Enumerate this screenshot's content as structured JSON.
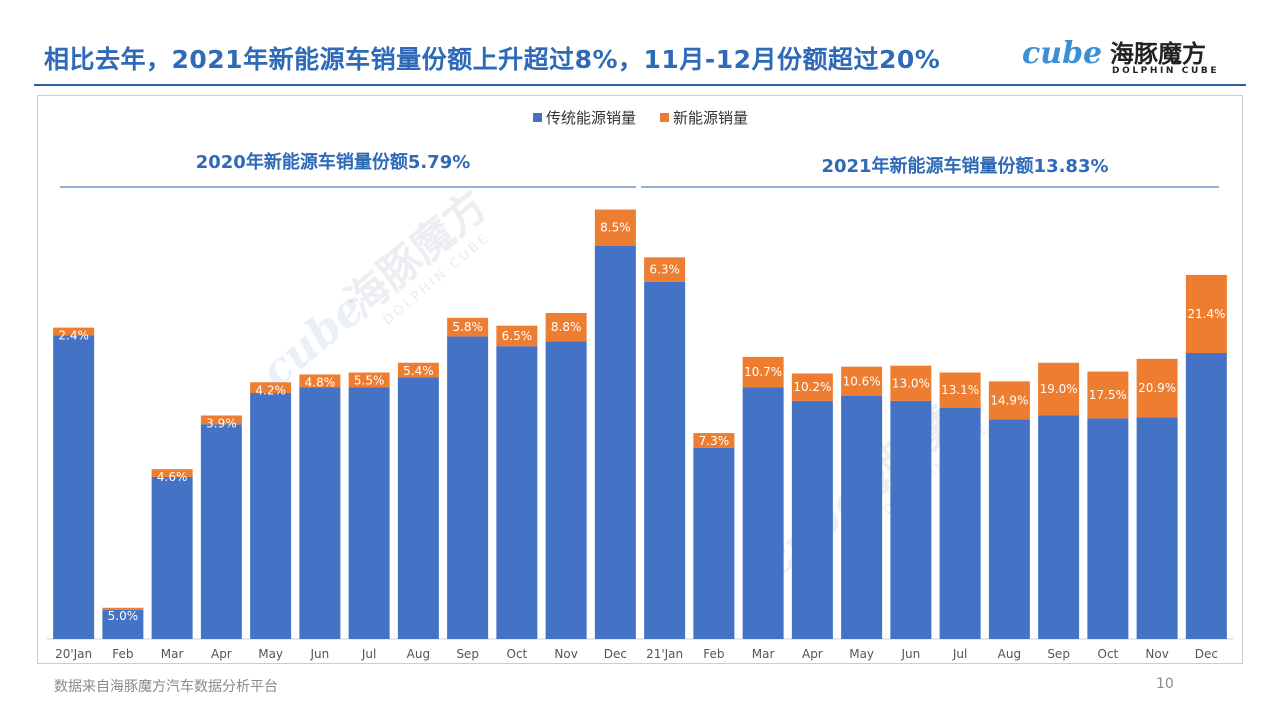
{
  "title": "相比去年，2021年新能源车销量份额上升超过8%，11月-12月份额超过20%",
  "logo": {
    "word": "cube",
    "name_cn": "海豚魔方",
    "name_en": "DOLPHIN CUBE"
  },
  "watermark": {
    "name_cn": "海豚魔方",
    "name_en": "DOLPHIN CUBE",
    "word": "cube"
  },
  "footer": {
    "source": "数据来自海豚魔方汽车数据分析平台",
    "page_number": "10"
  },
  "colors": {
    "traditional": "#4472c4",
    "nev": "#ed7d31",
    "title": "#2e6ab8"
  },
  "chart_data": {
    "type": "bar",
    "stacked": true,
    "y_axis_shown": false,
    "grid": false,
    "legend_position": "top-center",
    "categories": [
      "20'Jan",
      "Feb",
      "Mar",
      "Apr",
      "May",
      "Jun",
      "Jul",
      "Aug",
      "Sep",
      "Oct",
      "Nov",
      "Dec",
      "21'Jan",
      "Feb",
      "Mar",
      "Apr",
      "May",
      "Jun",
      "Jul",
      "Aug",
      "Sep",
      "Oct",
      "Nov",
      "Dec"
    ],
    "series": [
      {
        "name": "传统能源销量",
        "color": "#4472c4",
        "values": [
          311,
          30,
          166,
          220,
          252,
          258,
          258,
          268,
          310,
          300,
          305,
          403,
          366,
          196,
          258,
          244,
          249,
          244,
          237,
          225,
          229,
          226,
          227,
          293
        ]
      },
      {
        "name": "新能源销量",
        "color": "#ed7d31",
        "values": [
          8,
          2,
          8,
          9,
          11,
          13,
          15,
          15,
          19,
          21,
          29,
          37,
          25,
          15,
          31,
          28,
          30,
          36,
          36,
          39,
          54,
          48,
          60,
          80
        ]
      }
    ],
    "data_labels": [
      "2.4%",
      "5.0%",
      "4.6%",
      "3.9%",
      "4.2%",
      "4.8%",
      "5.5%",
      "5.4%",
      "5.8%",
      "6.5%",
      "8.8%",
      "8.5%",
      "6.3%",
      "7.3%",
      "10.7%",
      "10.2%",
      "10.6%",
      "13.0%",
      "13.1%",
      "14.9%",
      "19.0%",
      "17.5%",
      "20.9%",
      "21.4%"
    ],
    "year_annotations": [
      {
        "label": "2020年新能源车销量份额5.79%",
        "from_index": 0,
        "to_index": 11
      },
      {
        "label": "2021年新能源车销量份额13.83%",
        "from_index": 12,
        "to_index": 23
      }
    ],
    "ylim": [
      0,
      460
    ]
  }
}
